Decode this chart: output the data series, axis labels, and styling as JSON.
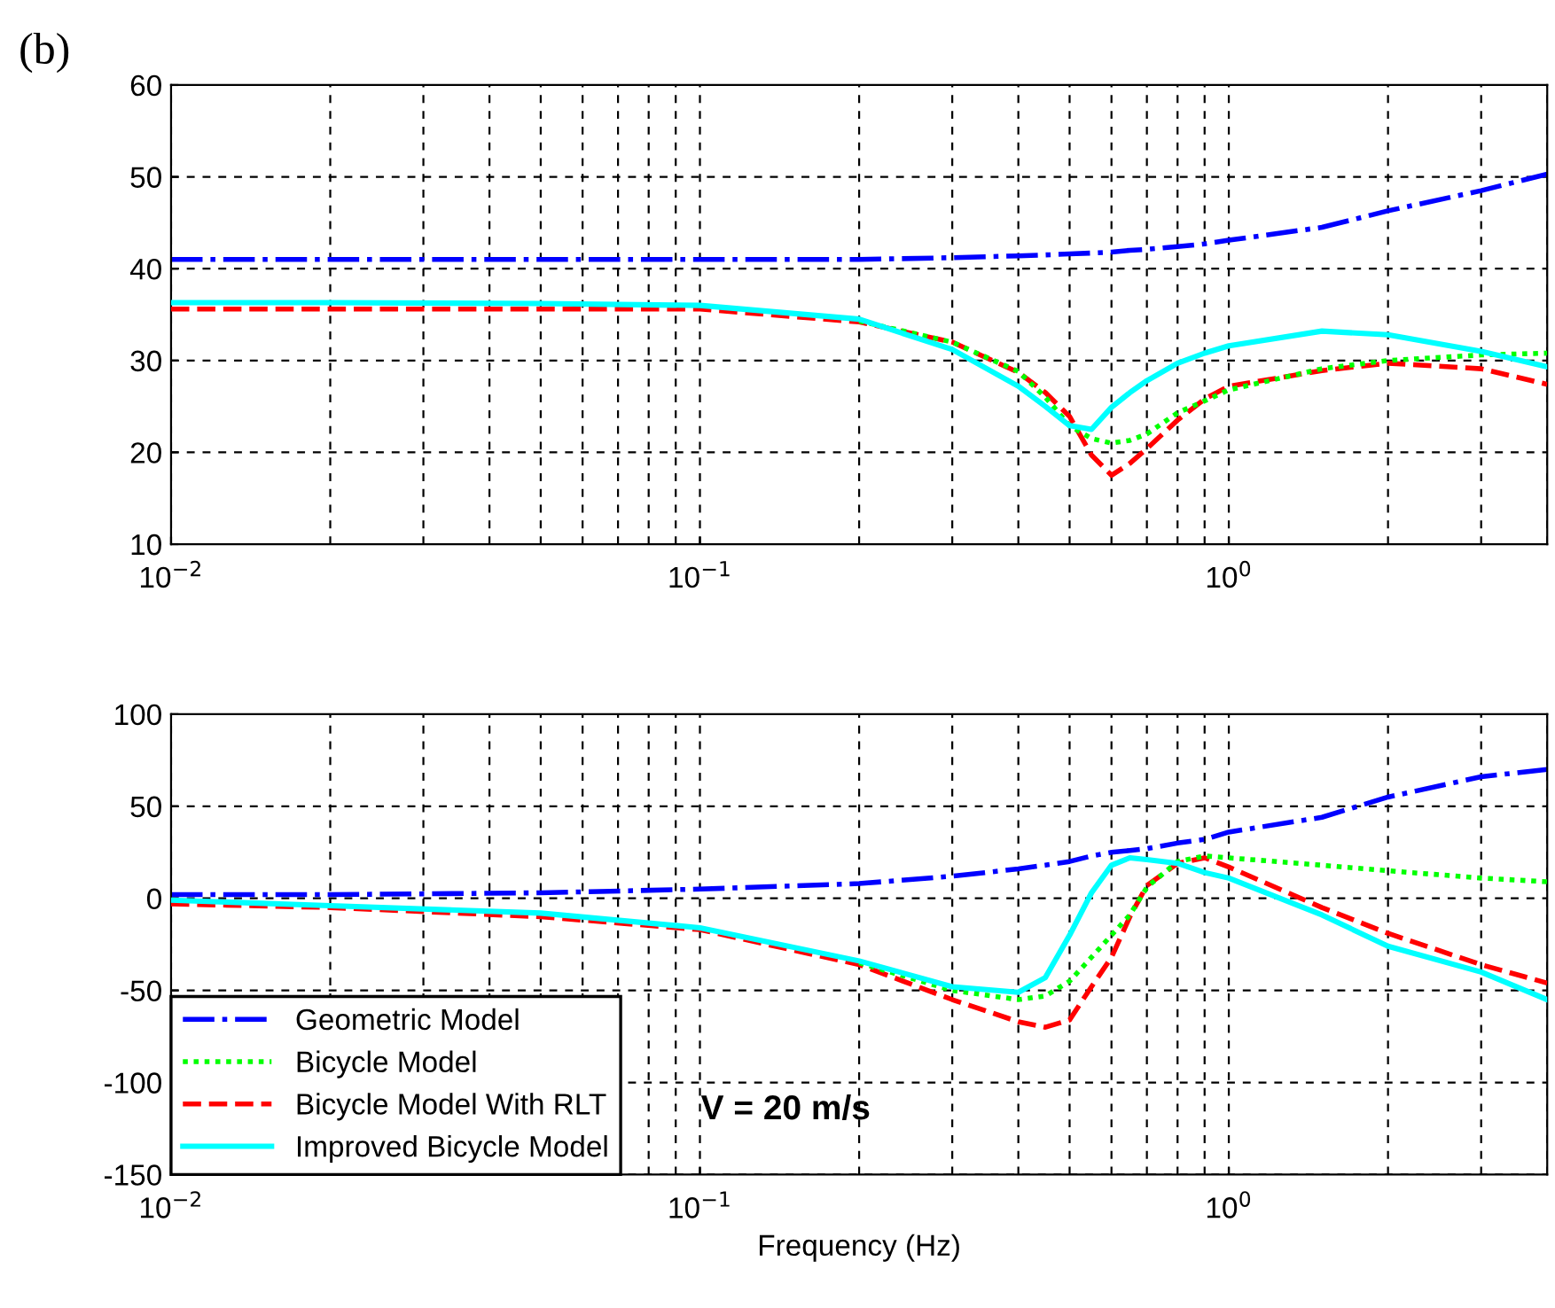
{
  "chart_data": [
    {
      "type": "line",
      "annotations": [
        "(b)"
      ],
      "log": "x",
      "grid": true,
      "legend": false,
      "x": [
        0.01,
        0.02,
        0.05,
        0.1,
        0.2,
        0.3,
        0.4,
        0.45,
        0.5,
        0.55,
        0.6,
        0.65,
        0.7,
        0.8,
        0.9,
        1,
        1.5,
        2,
        3,
        4
      ],
      "xlim": [
        0.01,
        4
      ],
      "xticks": [
        {
          "value": 0.01,
          "label": "10$^{−2}$"
        },
        {
          "value": 0.1,
          "label": "10$^{−1}$"
        },
        {
          "value": 1,
          "label": "10$^{0}$"
        }
      ],
      "ylim": [
        10,
        60
      ],
      "yticks": [
        10,
        20,
        30,
        40,
        50,
        60
      ],
      "series": [
        {
          "color": "#0000ff",
          "line_style": "dashdot",
          "values": [
            41,
            41,
            41,
            41,
            41,
            41.2,
            41.4,
            41.5,
            41.6,
            41.7,
            41.8,
            42,
            42.1,
            42.4,
            42.7,
            43.1,
            44.5,
            46.3,
            48.5,
            50.3
          ]
        },
        {
          "color": "#00ff00",
          "line_style": "dotted",
          "values": [
            null,
            null,
            null,
            null,
            34.3,
            32,
            28.8,
            26,
            22.9,
            21.5,
            21,
            21.3,
            22,
            24.3,
            25.6,
            26.8,
            29.1,
            30,
            30.6,
            30.8
          ]
        },
        {
          "color": "#ff0000",
          "line_style": "dashed",
          "values": [
            35.6,
            35.6,
            35.6,
            35.6,
            34.2,
            32,
            28.7,
            26.5,
            23.9,
            19.7,
            17.5,
            18.8,
            20.4,
            23.5,
            25.8,
            27.2,
            28.9,
            29.7,
            29.1,
            27.4
          ]
        },
        {
          "color": "#00ffff",
          "line_style": "solid",
          "values": [
            36.3,
            36.3,
            36.2,
            36,
            34.5,
            31.2,
            27.2,
            25,
            22.9,
            22.5,
            24.9,
            26.5,
            27.8,
            29.7,
            30.8,
            31.6,
            33.2,
            32.8,
            31,
            29.3
          ]
        }
      ]
    },
    {
      "type": "line",
      "xlabel": "Frequency (Hz)",
      "annotations": [
        "V = 20 m/s"
      ],
      "log": "x",
      "grid": true,
      "legend": "bottom left",
      "x": [
        0.01,
        0.02,
        0.05,
        0.1,
        0.2,
        0.3,
        0.4,
        0.45,
        0.5,
        0.55,
        0.6,
        0.65,
        0.7,
        0.8,
        0.9,
        1,
        1.5,
        2,
        3,
        4
      ],
      "xlim": [
        0.01,
        4
      ],
      "xticks": [
        {
          "value": 0.01,
          "label": "10$^{−2}$"
        },
        {
          "value": 0.1,
          "label": "10$^{−1}$"
        },
        {
          "value": 1,
          "label": "10$^{0}$"
        }
      ],
      "ylim": [
        -150,
        100
      ],
      "yticks": [
        -150,
        -100,
        -50,
        0,
        50,
        100
      ],
      "series": [
        {
          "name": "Geometric Model",
          "color": "#0000ff",
          "line_style": "dashdot",
          "values": [
            2,
            2,
            3,
            5,
            8,
            12,
            16,
            18,
            20,
            23,
            25,
            26,
            27,
            30,
            32,
            36,
            44,
            55,
            66,
            70
          ]
        },
        {
          "name": "Bicycle Model",
          "color": "#00ff00",
          "line_style": "dotted",
          "values": [
            null,
            null,
            null,
            null,
            -35,
            -50,
            -55,
            -53,
            -45,
            -32,
            -20,
            -9,
            6,
            20,
            23,
            22,
            18,
            15,
            11,
            9
          ]
        },
        {
          "name": "Bicycle Model With RLT",
          "color": "#ff0000",
          "line_style": "dashed",
          "values": [
            -3,
            -5,
            -10,
            -17,
            -36,
            -55,
            -67,
            -70,
            -66,
            -48,
            -32,
            -10,
            7,
            19,
            22,
            17,
            -5,
            -19,
            -36,
            -46
          ]
        },
        {
          "name": "Improved Bicycle Model",
          "color": "#00ffff",
          "line_style": "solid",
          "values": [
            -1,
            -4,
            -8,
            -16,
            -34,
            -48,
            -51,
            -43,
            -20,
            3,
            18,
            22,
            21,
            19,
            14,
            11,
            -9,
            -26,
            -40,
            -55
          ]
        }
      ]
    }
  ]
}
